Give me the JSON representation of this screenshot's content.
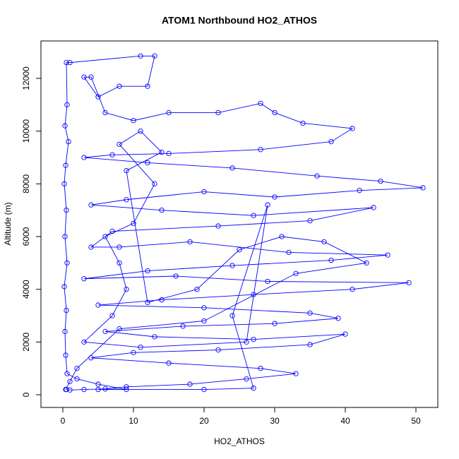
{
  "chart_data": {
    "type": "line",
    "title": "ATOM1 Northbound HO2_ATHOS",
    "x_label": "HO2_ATHOS",
    "y_label": "Altitude (m)",
    "marker": "circle",
    "color": "#0000ff",
    "xlim": [
      -3.1,
      53.1
    ],
    "ylim": [
      -482,
      13420
    ],
    "xticks": [
      0,
      10,
      20,
      30,
      40,
      50
    ],
    "yticks": [
      0,
      2000,
      4000,
      6000,
      8000,
      10000,
      12000
    ],
    "x": [
      0.5,
      1,
      3,
      6,
      9,
      5,
      2,
      0.6,
      0.4,
      0.3,
      0.5,
      0.2,
      0.6,
      0.3,
      0.5,
      0.2,
      0.4,
      0.8,
      0.3,
      0.6,
      0.5,
      1,
      11,
      13,
      12,
      8,
      5,
      3,
      4,
      6,
      10,
      15,
      22,
      28,
      30,
      34,
      41,
      38,
      28,
      15,
      7,
      3,
      12,
      24,
      36,
      45,
      51,
      42,
      30,
      20,
      9,
      4,
      14,
      27,
      44,
      35,
      22,
      7,
      4,
      8,
      18,
      32,
      46,
      38,
      24,
      12,
      3,
      16,
      29,
      49,
      41,
      27,
      14,
      5,
      20,
      35,
      39,
      30,
      17,
      6,
      13,
      27,
      40,
      35,
      22,
      10,
      4,
      15,
      28,
      33,
      26,
      18,
      9,
      5,
      20,
      27,
      24,
      29,
      26,
      11,
      3,
      7,
      9,
      8,
      6,
      10,
      13,
      8,
      11,
      14,
      9,
      12,
      19,
      25,
      31,
      37,
      43,
      33,
      20,
      8,
      2,
      1,
      0.4
    ],
    "values": [
      200,
      180,
      200,
      220,
      200,
      400,
      600,
      800,
      1500,
      2400,
      3200,
      4100,
      5000,
      6000,
      7000,
      8000,
      8700,
      9600,
      10200,
      11000,
      12600,
      12600,
      12850,
      12850,
      11700,
      11700,
      11300,
      12050,
      12050,
      10700,
      10400,
      10700,
      10700,
      11050,
      10700,
      10300,
      10100,
      9600,
      9300,
      9150,
      9100,
      9000,
      8800,
      8600,
      8300,
      8100,
      7850,
      7750,
      7500,
      7700,
      7400,
      7200,
      7000,
      6800,
      7100,
      6600,
      6400,
      6200,
      5600,
      5600,
      5800,
      5400,
      5300,
      5100,
      4900,
      4700,
      4400,
      4500,
      4300,
      4250,
      4000,
      3800,
      3600,
      3400,
      3300,
      3100,
      2900,
      2700,
      2600,
      2400,
      2200,
      2100,
      2300,
      1900,
      1700,
      1600,
      1400,
      1200,
      1000,
      800,
      600,
      400,
      300,
      200,
      200,
      250,
      3000,
      7200,
      2000,
      1800,
      2000,
      3000,
      4000,
      5000,
      6000,
      6500,
      8000,
      9500,
      10000,
      9200,
      8500,
      3500,
      4000,
      5500,
      6000,
      5800,
      5000,
      4600,
      2800,
      2500,
      1000,
      500,
      200
    ]
  }
}
